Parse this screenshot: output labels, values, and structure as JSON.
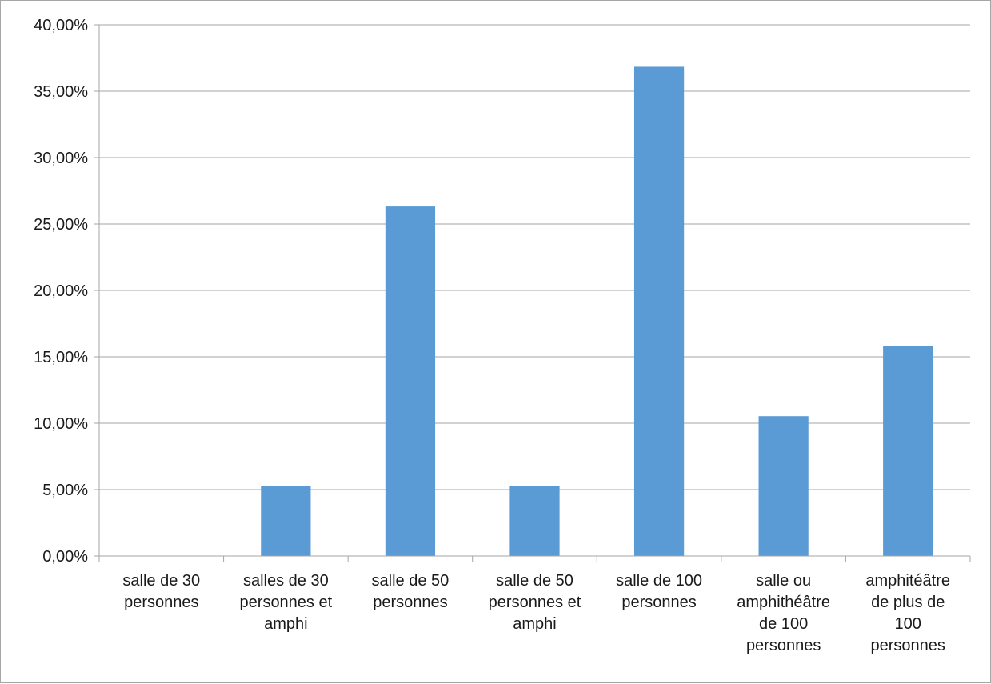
{
  "chart_data": {
    "type": "bar",
    "categories": [
      [
        "salle de 30",
        "personnes"
      ],
      [
        "salles de 30",
        "personnes et",
        "amphi"
      ],
      [
        "salle de 50",
        "personnes"
      ],
      [
        "salle de 50",
        "personnes et",
        "amphi"
      ],
      [
        "salle de 100",
        "personnes"
      ],
      [
        "salle ou",
        "amphithéâtre",
        "de 100",
        "personnes"
      ],
      [
        "amphitéâtre",
        "de plus de",
        "100",
        "personnes"
      ]
    ],
    "values": [
      0,
      5.26,
      26.32,
      5.26,
      36.84,
      10.53,
      15.79
    ],
    "ylim": [
      0,
      40
    ],
    "yticks": [
      "0,00%",
      "5,00%",
      "10,00%",
      "15,00%",
      "20,00%",
      "25,00%",
      "30,00%",
      "35,00%",
      "40,00%"
    ],
    "title": "",
    "xlabel": "",
    "ylabel": "",
    "grid": true,
    "legend": "none",
    "bar_color": "#5b9bd5",
    "grid_color": "#a6a6a6"
  }
}
